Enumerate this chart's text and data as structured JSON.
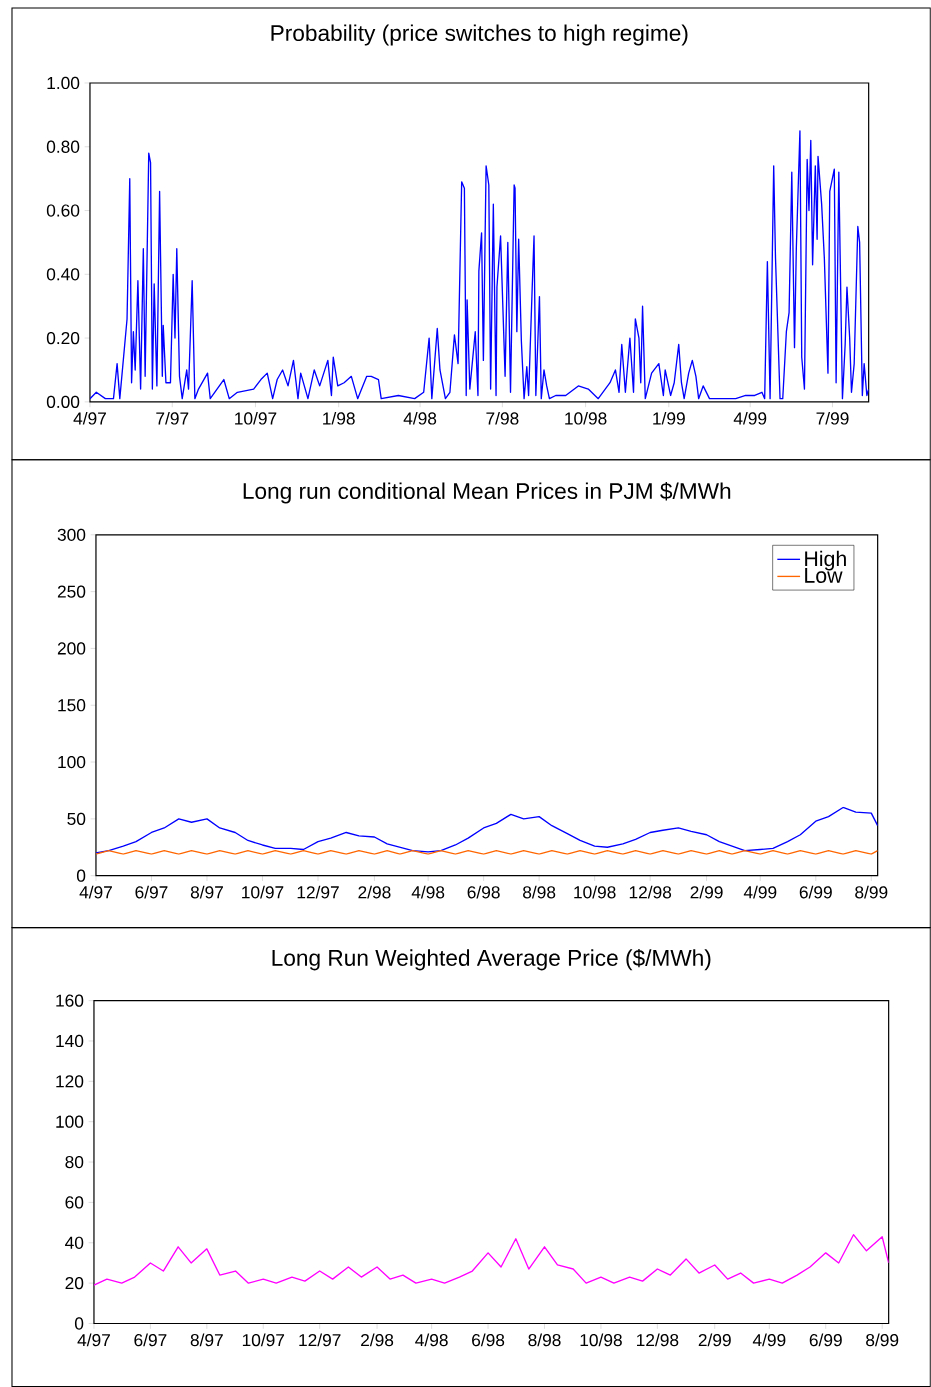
{
  "chart_data": [
    {
      "type": "line",
      "title": "Probability (price switches to high regime)",
      "color": "#0000ff",
      "xlim": [
        "1997-04-01",
        "1999-08-10"
      ],
      "ylim": [
        0,
        1
      ],
      "xticks": [
        {
          "value": "1997-04",
          "label": "4/97"
        },
        {
          "value": "1997-07",
          "label": "7/97"
        },
        {
          "value": "1997-10",
          "label": "10/97"
        },
        {
          "value": "1998-01",
          "label": "1/98"
        },
        {
          "value": "1998-04",
          "label": "4/98"
        },
        {
          "value": "1998-07",
          "label": "7/98"
        },
        {
          "value": "1998-10",
          "label": "10/98"
        },
        {
          "value": "1999-01",
          "label": "1/99"
        },
        {
          "value": "1999-04",
          "label": "4/99"
        },
        {
          "value": "1999-07",
          "label": "7/99"
        }
      ],
      "yticks": [
        {
          "value": 0,
          "label": "0.00"
        },
        {
          "value": 0.2,
          "label": "0.20"
        },
        {
          "value": 0.4,
          "label": "0.40"
        },
        {
          "value": 0.6,
          "label": "0.60"
        },
        {
          "value": 0.8,
          "label": "0.80"
        },
        {
          "value": 1,
          "label": "1.00"
        }
      ],
      "x": [
        "1997-04-01",
        "1997-04-08",
        "1997-04-18",
        "1997-04-27",
        "1997-05-01",
        "1997-05-04",
        "1997-05-12",
        "1997-05-15",
        "1997-05-17",
        "1997-05-19",
        "1997-05-21",
        "1997-05-24",
        "1997-05-27",
        "1997-05-30",
        "1997-06-01",
        "1997-06-05",
        "1997-06-07",
        "1997-06-09",
        "1997-06-11",
        "1997-06-14",
        "1997-06-17",
        "1997-06-20",
        "1997-06-21",
        "1997-06-24",
        "1997-06-29",
        "1997-07-02",
        "1997-07-04",
        "1997-07-06",
        "1997-07-09",
        "1997-07-12",
        "1997-07-17",
        "1997-07-19",
        "1997-07-23",
        "1997-07-26",
        "1997-07-30",
        "1997-08-09",
        "1997-08-12",
        "1997-08-27",
        "1997-09-02",
        "1997-09-11",
        "1997-09-29",
        "1997-10-07",
        "1997-10-14",
        "1997-10-20",
        "1997-10-25",
        "1997-10-31",
        "1997-11-06",
        "1997-11-12",
        "1997-11-17",
        "1997-11-20",
        "1997-11-28",
        "1997-12-05",
        "1997-12-11",
        "1997-12-20",
        "1997-12-24",
        "1997-12-26",
        "1997-12-31",
        "1998-01-07",
        "1998-01-15",
        "1998-01-22",
        "1998-02-01",
        "1998-02-06",
        "1998-02-14",
        "1998-02-17",
        "1998-03-08",
        "1998-03-26",
        "1998-04-05",
        "1998-04-11",
        "1998-04-14",
        "1998-04-20",
        "1998-04-23",
        "1998-04-29",
        "1998-05-04",
        "1998-05-09",
        "1998-05-13",
        "1998-05-17",
        "1998-05-20",
        "1998-05-22",
        "1998-05-23",
        "1998-05-26",
        "1998-06-01",
        "1998-06-04",
        "1998-06-05",
        "1998-06-08",
        "1998-06-10",
        "1998-06-13",
        "1998-06-16",
        "1998-06-18",
        "1998-06-21",
        "1998-06-24",
        "1998-06-25",
        "1998-06-29",
        "1998-07-04",
        "1998-07-07",
        "1998-07-10",
        "1998-07-14",
        "1998-07-15",
        "1998-07-17",
        "1998-07-19",
        "1998-07-22",
        "1998-07-25",
        "1998-07-28",
        "1998-07-30",
        "1998-08-03",
        "1998-08-05",
        "1998-08-07",
        "1998-08-11",
        "1998-08-13",
        "1998-08-16",
        "1998-08-19",
        "1998-08-22",
        "1998-08-29",
        "1998-09-09",
        "1998-09-23",
        "1998-10-04",
        "1998-10-15",
        "1998-10-28",
        "1998-11-03",
        "1998-11-07",
        "1998-11-10",
        "1998-11-14",
        "1998-11-19",
        "1998-11-23",
        "1998-11-25",
        "1998-11-29",
        "1998-12-01",
        "1998-12-03",
        "1998-12-06",
        "1998-12-13",
        "1998-12-21",
        "1998-12-26",
        "1998-12-28",
        "1999-01-03",
        "1999-01-07",
        "1999-01-12",
        "1999-01-15",
        "1999-01-18",
        "1999-01-23",
        "1999-01-27",
        "1999-01-31",
        "1999-02-03",
        "1999-02-08",
        "1999-02-15",
        "1999-03-02",
        "1999-03-16",
        "1999-03-27",
        "1999-04-06",
        "1999-04-14",
        "1999-04-17",
        "1999-04-20",
        "1999-04-23",
        "1999-04-27",
        "1999-04-29",
        "1999-05-04",
        "1999-05-07",
        "1999-05-11",
        "1999-05-14",
        "1999-05-17",
        "1999-05-20",
        "1999-05-22",
        "1999-05-26",
        "1999-05-28",
        "1999-05-31",
        "1999-06-03",
        "1999-06-05",
        "1999-06-07",
        "1999-06-09",
        "1999-06-12",
        "1999-06-14",
        "1999-06-15",
        "1999-06-19",
        "1999-06-22",
        "1999-06-26",
        "1999-06-28",
        "1999-07-03",
        "1999-07-05",
        "1999-07-08",
        "1999-07-12",
        "1999-07-15",
        "1999-07-17",
        "1999-07-20",
        "1999-07-22",
        "1999-07-25",
        "1999-07-29",
        "1999-07-31",
        "1999-08-03",
        "1999-08-05",
        "1999-08-08",
        "1999-08-10"
      ],
      "values": [
        0.01,
        0.03,
        0.01,
        0.01,
        0.12,
        0.01,
        0.26,
        0.7,
        0.06,
        0.22,
        0.1,
        0.38,
        0.04,
        0.48,
        0.08,
        0.78,
        0.75,
        0.04,
        0.37,
        0.05,
        0.66,
        0.08,
        0.24,
        0.06,
        0.06,
        0.4,
        0.2,
        0.48,
        0.08,
        0.01,
        0.1,
        0.04,
        0.38,
        0.01,
        0.04,
        0.09,
        0.01,
        0.07,
        0.01,
        0.03,
        0.04,
        0.07,
        0.09,
        0.01,
        0.07,
        0.1,
        0.05,
        0.13,
        0.01,
        0.09,
        0.01,
        0.1,
        0.05,
        0.13,
        0.02,
        0.14,
        0.05,
        0.06,
        0.08,
        0.01,
        0.08,
        0.08,
        0.07,
        0.01,
        0.02,
        0.01,
        0.03,
        0.2,
        0.01,
        0.23,
        0.1,
        0.01,
        0.03,
        0.21,
        0.12,
        0.69,
        0.67,
        0.02,
        0.32,
        0.04,
        0.22,
        0.02,
        0.41,
        0.53,
        0.13,
        0.74,
        0.68,
        0.04,
        0.62,
        0.02,
        0.36,
        0.52,
        0.08,
        0.5,
        0.03,
        0.68,
        0.67,
        0.22,
        0.51,
        0.19,
        0.01,
        0.11,
        0.02,
        0.36,
        0.52,
        0.02,
        0.33,
        0.01,
        0.1,
        0.05,
        0.01,
        0.02,
        0.02,
        0.05,
        0.04,
        0.01,
        0.06,
        0.1,
        0.03,
        0.18,
        0.03,
        0.2,
        0.03,
        0.26,
        0.2,
        0.06,
        0.3,
        0.01,
        0.09,
        0.12,
        0.02,
        0.1,
        0.02,
        0.06,
        0.18,
        0.06,
        0.01,
        0.09,
        0.13,
        0.08,
        0.01,
        0.05,
        0.01,
        0.01,
        0.01,
        0.02,
        0.02,
        0.03,
        0.01,
        0.44,
        0.01,
        0.74,
        0.45,
        0.01,
        0.01,
        0.22,
        0.28,
        0.72,
        0.17,
        0.48,
        0.85,
        0.14,
        0.04,
        0.76,
        0.6,
        0.82,
        0.43,
        0.74,
        0.51,
        0.77,
        0.62,
        0.45,
        0.09,
        0.66,
        0.73,
        0.06,
        0.72,
        0.01,
        0.18,
        0.36,
        0.2,
        0.03,
        0.12,
        0.55,
        0.5,
        0.02,
        0.12,
        0.02,
        0.04
      ]
    },
    {
      "type": "line",
      "title": "Long run conditional Mean Prices in PJM $/MWh",
      "legend": "top right",
      "xlim": [
        "1997-04-01",
        "1999-08-08"
      ],
      "ylim": [
        0,
        300
      ],
      "yticks": [
        0,
        50,
        100,
        150,
        200,
        250,
        300
      ],
      "xticks": [
        {
          "value": "1997-04",
          "label": "4/97"
        },
        {
          "value": "1997-06",
          "label": "6/97"
        },
        {
          "value": "1997-08",
          "label": "8/97"
        },
        {
          "value": "1997-10",
          "label": "10/97"
        },
        {
          "value": "1997-12",
          "label": "12/97"
        },
        {
          "value": "1998-02",
          "label": "2/98"
        },
        {
          "value": "1998-04",
          "label": "4/98"
        },
        {
          "value": "1998-06",
          "label": "6/98"
        },
        {
          "value": "1998-08",
          "label": "8/98"
        },
        {
          "value": "1998-10",
          "label": "10/98"
        },
        {
          "value": "1998-12",
          "label": "12/98"
        },
        {
          "value": "1999-02",
          "label": "2/99"
        },
        {
          "value": "1999-04",
          "label": "4/99"
        },
        {
          "value": "1999-06",
          "label": "6/99"
        },
        {
          "value": "1999-08",
          "label": "8/99"
        }
      ],
      "x": [
        "1997-04-01",
        "1997-04-15",
        "1997-05-01",
        "1997-05-15",
        "1997-06-01",
        "1997-06-15",
        "1997-07-01",
        "1997-07-15",
        "1997-08-01",
        "1997-08-15",
        "1997-09-01",
        "1997-09-15",
        "1997-10-01",
        "1997-10-15",
        "1997-11-01",
        "1997-11-15",
        "1997-12-01",
        "1997-12-15",
        "1998-01-01",
        "1998-01-15",
        "1998-02-01",
        "1998-02-15",
        "1998-03-01",
        "1998-03-15",
        "1998-04-01",
        "1998-04-15",
        "1998-05-01",
        "1998-05-15",
        "1998-06-01",
        "1998-06-15",
        "1998-07-01",
        "1998-07-15",
        "1998-08-01",
        "1998-08-15",
        "1998-09-01",
        "1998-09-15",
        "1998-10-01",
        "1998-10-15",
        "1998-11-01",
        "1998-11-15",
        "1998-12-01",
        "1998-12-15",
        "1999-01-01",
        "1999-01-15",
        "1999-02-01",
        "1999-02-15",
        "1999-03-01",
        "1999-03-15",
        "1999-04-01",
        "1999-04-15",
        "1999-05-01",
        "1999-05-15",
        "1999-06-01",
        "1999-06-15",
        "1999-07-01",
        "1999-07-15",
        "1999-08-01",
        "1999-08-08"
      ],
      "series": [
        {
          "name": "High",
          "color": "#0000ff",
          "values": [
            20,
            22,
            26,
            30,
            38,
            42,
            50,
            47,
            50,
            42,
            38,
            31,
            27,
            24,
            24,
            23,
            30,
            33,
            38,
            35,
            34,
            28,
            25,
            22,
            21,
            22,
            27,
            33,
            42,
            46,
            54,
            50,
            52,
            44,
            37,
            31,
            26,
            25,
            28,
            32,
            38,
            40,
            42,
            39,
            36,
            30,
            26,
            22,
            23,
            24,
            30,
            36,
            48,
            52,
            60,
            56,
            55,
            44
          ]
        },
        {
          "name": "Low",
          "color": "#ff6600",
          "values": [
            19,
            22,
            19,
            22,
            19,
            22,
            19,
            22,
            19,
            22,
            19,
            22,
            19,
            22,
            19,
            22,
            19,
            22,
            19,
            22,
            19,
            22,
            19,
            22,
            19,
            22,
            19,
            22,
            19,
            22,
            19,
            22,
            19,
            22,
            19,
            22,
            19,
            22,
            19,
            22,
            19,
            22,
            19,
            22,
            19,
            22,
            19,
            22,
            19,
            22,
            19,
            22,
            19,
            22,
            19,
            22,
            19,
            22
          ]
        }
      ]
    },
    {
      "type": "line",
      "title": "Long Run Weighted Average Price ($/MWh)",
      "color": "#ff00ff",
      "xlim": [
        "1997-04-01",
        "1999-08-08"
      ],
      "ylim": [
        0,
        160
      ],
      "yticks": [
        0,
        20,
        40,
        60,
        80,
        100,
        120,
        140,
        160
      ],
      "xticks": [
        {
          "value": "1997-04",
          "label": "4/97"
        },
        {
          "value": "1997-06",
          "label": "6/97"
        },
        {
          "value": "1997-08",
          "label": "8/97"
        },
        {
          "value": "1997-10",
          "label": "10/97"
        },
        {
          "value": "1997-12",
          "label": "12/97"
        },
        {
          "value": "1998-02",
          "label": "2/98"
        },
        {
          "value": "1998-04",
          "label": "4/98"
        },
        {
          "value": "1998-06",
          "label": "6/98"
        },
        {
          "value": "1998-08",
          "label": "8/98"
        },
        {
          "value": "1998-10",
          "label": "10/98"
        },
        {
          "value": "1998-12",
          "label": "12/98"
        },
        {
          "value": "1999-02",
          "label": "2/99"
        },
        {
          "value": "1999-04",
          "label": "4/99"
        },
        {
          "value": "1999-06",
          "label": "6/99"
        },
        {
          "value": "1999-08",
          "label": "8/99"
        }
      ],
      "x": [
        "1997-04-01",
        "1997-04-15",
        "1997-05-01",
        "1997-05-15",
        "1997-06-01",
        "1997-06-15",
        "1997-07-01",
        "1997-07-15",
        "1997-08-01",
        "1997-08-15",
        "1997-09-01",
        "1997-09-15",
        "1997-10-01",
        "1997-10-15",
        "1997-11-01",
        "1997-11-15",
        "1997-12-01",
        "1997-12-15",
        "1998-01-01",
        "1998-01-15",
        "1998-02-01",
        "1998-02-15",
        "1998-03-01",
        "1998-03-15",
        "1998-04-01",
        "1998-04-15",
        "1998-05-01",
        "1998-05-15",
        "1998-06-01",
        "1998-06-15",
        "1998-07-01",
        "1998-07-15",
        "1998-08-01",
        "1998-08-15",
        "1998-09-01",
        "1998-09-15",
        "1998-10-01",
        "1998-10-15",
        "1998-11-01",
        "1998-11-15",
        "1998-12-01",
        "1998-12-15",
        "1999-01-01",
        "1999-01-15",
        "1999-02-01",
        "1999-02-15",
        "1999-03-01",
        "1999-03-15",
        "1999-04-01",
        "1999-04-15",
        "1999-05-01",
        "1999-05-15",
        "1999-06-01",
        "1999-06-15",
        "1999-07-01",
        "1999-07-15",
        "1999-08-01",
        "1999-08-08"
      ],
      "values": [
        19,
        22,
        20,
        23,
        30,
        26,
        38,
        30,
        37,
        24,
        26,
        20,
        22,
        20,
        23,
        21,
        26,
        22,
        28,
        23,
        28,
        22,
        24,
        20,
        22,
        20,
        23,
        26,
        35,
        28,
        42,
        27,
        38,
        29,
        27,
        20,
        23,
        20,
        23,
        21,
        27,
        24,
        32,
        25,
        29,
        22,
        25,
        20,
        22,
        20,
        24,
        28,
        35,
        30,
        44,
        36,
        43,
        30
      ]
    }
  ]
}
